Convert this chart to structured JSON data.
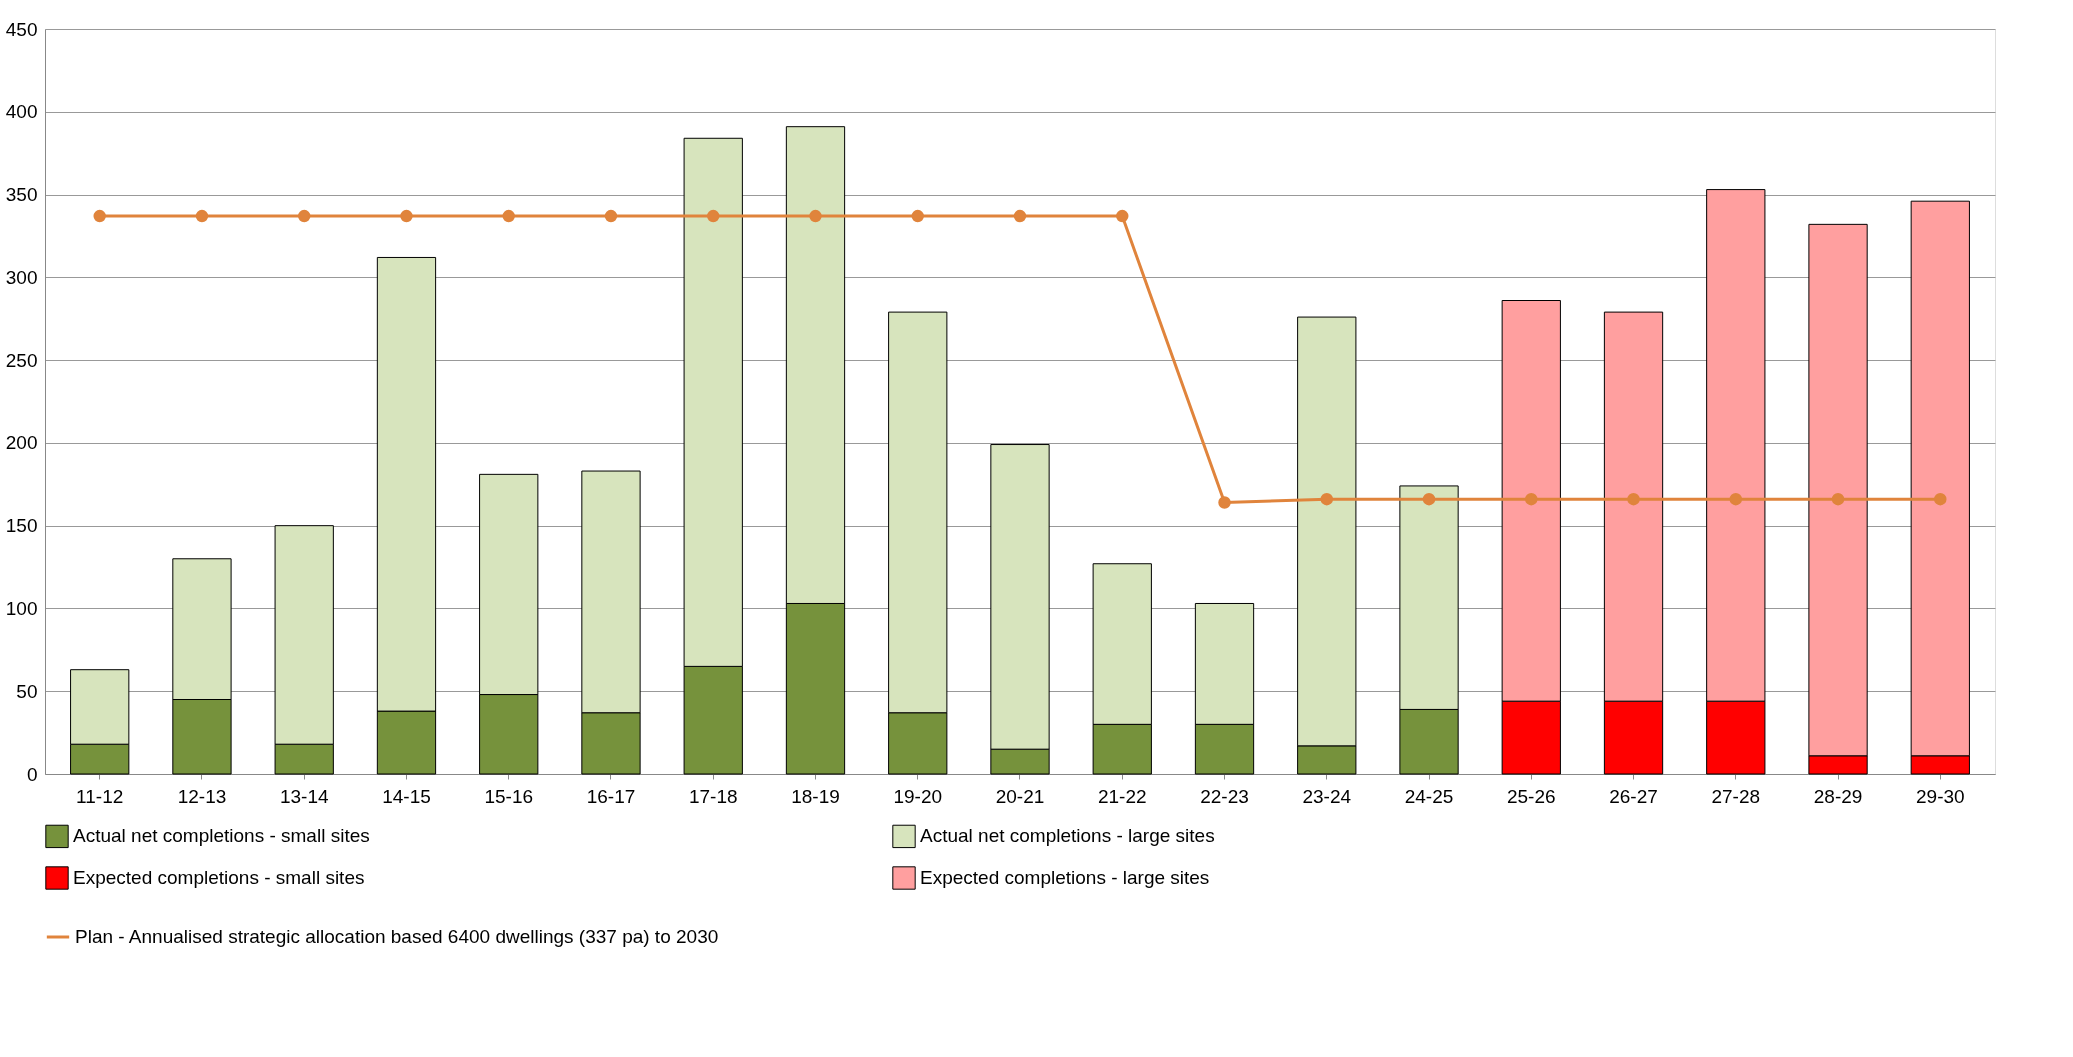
{
  "chart_data": {
    "type": "bar",
    "stacked": true,
    "categories": [
      "11-12",
      "12-13",
      "13-14",
      "14-15",
      "15-16",
      "16-17",
      "17-18",
      "18-19",
      "19-20",
      "20-21",
      "21-22",
      "22-23",
      "23-24",
      "24-25",
      "25-26",
      "26-27",
      "27-28",
      "28-29",
      "29-30"
    ],
    "series": [
      {
        "name": "Actual net completions - small sites",
        "color": "#76923c",
        "values": [
          18,
          45,
          18,
          38,
          48,
          37,
          65,
          103,
          37,
          15,
          30,
          30,
          17,
          39,
          null,
          null,
          null,
          null,
          null
        ]
      },
      {
        "name": "Actual net completions - large sites",
        "color": "#d7e4bd",
        "values": [
          45,
          85,
          132,
          274,
          133,
          146,
          319,
          288,
          242,
          184,
          97,
          73,
          259,
          135,
          null,
          null,
          null,
          null,
          null
        ]
      },
      {
        "name": "Expected completions - small sites",
        "color": "#ff0000",
        "values": [
          null,
          null,
          null,
          null,
          null,
          null,
          null,
          null,
          null,
          null,
          null,
          null,
          null,
          null,
          44,
          44,
          44,
          11,
          11
        ]
      },
      {
        "name": "Expected completions - large sites",
        "color": "#ff9f9f",
        "values": [
          null,
          null,
          null,
          null,
          null,
          null,
          null,
          null,
          null,
          null,
          null,
          null,
          null,
          null,
          242,
          235,
          309,
          321,
          335
        ]
      },
      {
        "name": "Plan - Annualised strategic allocation based 6400 dwellings (337 pa) to 2030",
        "type": "line",
        "color": "#e0843c",
        "marker": "circle",
        "values": [
          337,
          337,
          337,
          337,
          337,
          337,
          337,
          337,
          337,
          337,
          337,
          164,
          166,
          166,
          166,
          166,
          166,
          166,
          166
        ]
      }
    ],
    "ylim": [
      0,
      450
    ],
    "yticks": [
      0,
      50,
      100,
      150,
      200,
      250,
      300,
      350,
      400,
      450
    ],
    "grid": "y",
    "legend": "bottom"
  }
}
